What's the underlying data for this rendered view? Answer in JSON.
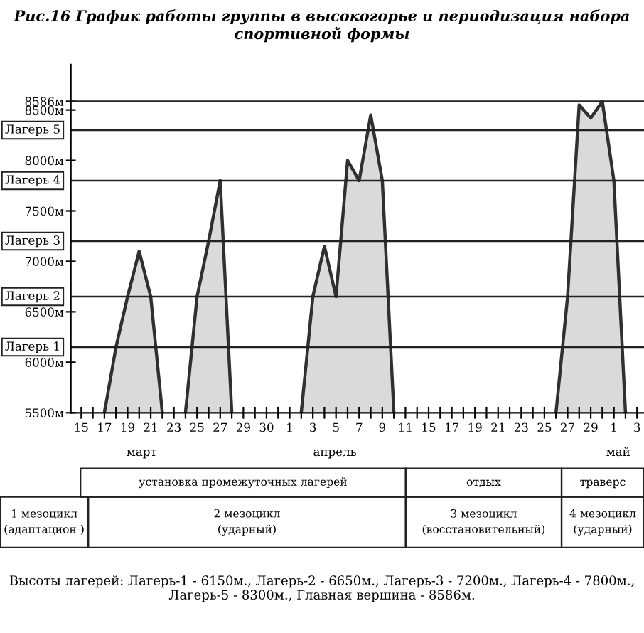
{
  "chart_data": {
    "type": "area",
    "title": "Рис.16 График работы группы в высокогорье и периодизация набора спортивной формы",
    "categories": [
      "15",
      null,
      "17",
      null,
      "19",
      null,
      "21",
      null,
      "23",
      null,
      "25",
      null,
      "27",
      null,
      "29",
      null,
      "30",
      null,
      "1",
      null,
      "3",
      null,
      "5",
      null,
      "7",
      null,
      "9",
      null,
      "11",
      null,
      "15",
      null,
      "17",
      null,
      "19",
      null,
      "21",
      null,
      "23",
      null,
      "25",
      null,
      "27",
      null,
      "29",
      null,
      "1",
      null,
      "3"
    ],
    "series": [
      {
        "color": "#303030",
        "values": [
          null,
          null,
          5500,
          6150,
          6650,
          7100,
          6650,
          5500,
          null,
          5500,
          6650,
          7200,
          7800,
          5500,
          null,
          null,
          null,
          null,
          null,
          5500,
          6650,
          7150,
          6650,
          8000,
          7800,
          8450,
          7800,
          5500,
          null,
          null,
          null,
          null,
          null,
          null,
          null,
          null,
          null,
          null,
          null,
          null,
          null,
          5500,
          6650,
          8550,
          8420,
          8586,
          7800,
          5500,
          null
        ]
      }
    ],
    "ylim": [
      5500,
      8950
    ],
    "yticks": [
      {
        "value": 5500,
        "label": "5500м"
      },
      {
        "value": 6000,
        "label": "6000м"
      },
      {
        "value": 6500,
        "label": "6500м"
      },
      {
        "value": 7000,
        "label": "7000м"
      },
      {
        "value": 7500,
        "label": "7500м"
      },
      {
        "value": 8000,
        "label": "8000м"
      },
      {
        "value": 8500,
        "label": "8500м"
      },
      {
        "value": 8586,
        "label": "8586м"
      }
    ],
    "ref_lines": [
      {
        "axis": "y",
        "value": 6150,
        "label": "Лагерь 1"
      },
      {
        "axis": "y",
        "value": 6650,
        "label": "Лагерь 2"
      },
      {
        "axis": "y",
        "value": 7200,
        "label": "Лагерь 3"
      },
      {
        "axis": "y",
        "value": 7800,
        "label": "Лагерь 4"
      },
      {
        "axis": "y",
        "value": 8300,
        "label": "Лагерь 5"
      },
      {
        "axis": "y",
        "value": 8586,
        "label": null
      }
    ],
    "grid": false,
    "legend": false,
    "annotations": [
      "март",
      "апрель",
      "май",
      "установка промежуточных лагерей",
      "отдых",
      "траверс",
      "1 мезоцикл\n(адаптацион )",
      "2 мезоцикл\n(ударный)",
      "3 мезоцикл\n(восстановительный)",
      "4 мезоцикл\n(ударный)",
      "Высоты лагерей: Лагерь-1 - 6150м., Лагерь-2 - 6650м., Лагерь-3 - 7200м., Лагерь-4 - 7800м., Лагерь-5 - 8300м., Главная вершина - 8586м."
    ]
  }
}
